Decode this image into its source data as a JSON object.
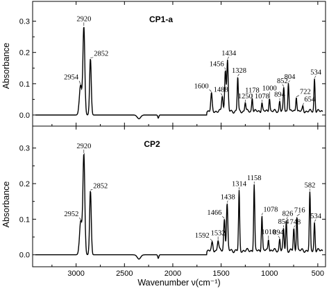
{
  "chart_data": {
    "type": "line",
    "xlabel": "Wavenumber  ν(cm⁻¹)",
    "ylabel": "Absorbance",
    "xlim": [
      3450,
      420
    ],
    "x_reversed": true,
    "x_ticks": [
      3000,
      2500,
      2000,
      1500,
      1000,
      500
    ],
    "y_ticks": [
      0.0,
      0.1,
      0.2,
      0.3
    ],
    "grid": false,
    "panels": [
      {
        "title": "CP1-a",
        "ylim": [
          -0.02,
          0.35
        ],
        "baseline": 0.0,
        "peaks": [
          {
            "label": "2954",
            "x": 2954,
            "y": 0.095
          },
          {
            "label": "2920",
            "x": 2920,
            "y": 0.28
          },
          {
            "label": "2852",
            "x": 2852,
            "y": 0.18
          },
          {
            "label": "1600",
            "x": 1600,
            "y": 0.055
          },
          {
            "label": "1488",
            "x": 1488,
            "y": 0.05
          },
          {
            "label": "1456",
            "x": 1456,
            "y": 0.135
          },
          {
            "label": "1434",
            "x": 1434,
            "y": 0.16
          },
          {
            "label": "1328",
            "x": 1328,
            "y": 0.11
          },
          {
            "label": "1250",
            "x": 1250,
            "y": 0.03
          },
          {
            "label": "1178",
            "x": 1178,
            "y": 0.045
          },
          {
            "label": "1078",
            "x": 1078,
            "y": 0.03
          },
          {
            "label": "1000",
            "x": 1000,
            "y": 0.045
          },
          {
            "label": "894",
            "x": 894,
            "y": 0.035
          },
          {
            "label": "852",
            "x": 852,
            "y": 0.075
          },
          {
            "label": "804",
            "x": 804,
            "y": 0.095
          },
          {
            "label": "722",
            "x": 722,
            "y": 0.05
          },
          {
            "label": "654",
            "x": 654,
            "y": 0.015
          },
          {
            "label": "534",
            "x": 534,
            "y": 0.105
          }
        ]
      },
      {
        "title": "CP2",
        "ylim": [
          -0.02,
          0.35
        ],
        "baseline": 0.0,
        "peaks": [
          {
            "label": "2952",
            "x": 2952,
            "y": 0.095
          },
          {
            "label": "2920",
            "x": 2920,
            "y": 0.28
          },
          {
            "label": "2852",
            "x": 2852,
            "y": 0.18
          },
          {
            "label": "1592",
            "x": 1592,
            "y": 0.02
          },
          {
            "label": "1532",
            "x": 1532,
            "y": 0.03
          },
          {
            "label": "1466",
            "x": 1466,
            "y": 0.09
          },
          {
            "label": "1438",
            "x": 1438,
            "y": 0.13
          },
          {
            "label": "1314",
            "x": 1314,
            "y": 0.165
          },
          {
            "label": "1158",
            "x": 1158,
            "y": 0.185
          },
          {
            "label": "1078",
            "x": 1078,
            "y": 0.1
          },
          {
            "label": "1010",
            "x": 1010,
            "y": 0.035
          },
          {
            "label": "894",
            "x": 894,
            "y": 0.035
          },
          {
            "label": "854",
            "x": 854,
            "y": 0.06
          },
          {
            "label": "826",
            "x": 826,
            "y": 0.085
          },
          {
            "label": "748",
            "x": 748,
            "y": 0.06
          },
          {
            "label": "716",
            "x": 716,
            "y": 0.1
          },
          {
            "label": "582",
            "x": 582,
            "y": 0.16
          },
          {
            "label": "534",
            "x": 534,
            "y": 0.08
          }
        ]
      }
    ]
  }
}
